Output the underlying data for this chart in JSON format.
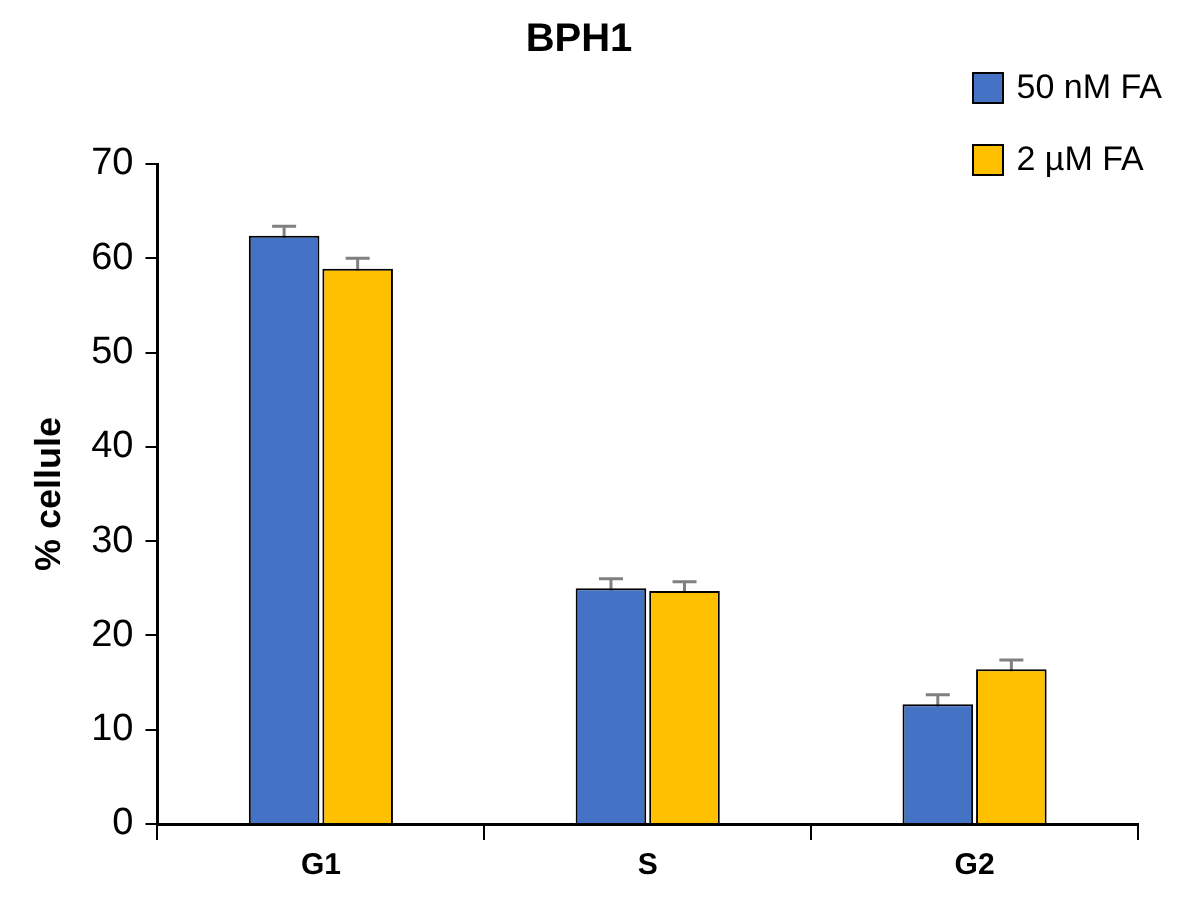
{
  "chart_data": {
    "type": "bar",
    "title": "BPH1",
    "ylabel": "% cellule",
    "categories": [
      "G1",
      "S",
      "G2"
    ],
    "series": [
      {
        "name": "50 nM FA",
        "color": "#4472c4",
        "values": [
          62.4,
          25.0,
          12.7
        ],
        "errors": [
          1.0,
          1.0,
          1.0
        ]
      },
      {
        "name": "2 µM FA",
        "color": "#ffc000",
        "values": [
          58.9,
          24.7,
          16.4
        ],
        "errors": [
          1.1,
          1.0,
          1.0
        ]
      }
    ],
    "ylim": [
      0,
      70
    ],
    "yticks": [
      0,
      10,
      20,
      30,
      40,
      50,
      60,
      70
    ],
    "grid": false,
    "legend": "top right"
  }
}
